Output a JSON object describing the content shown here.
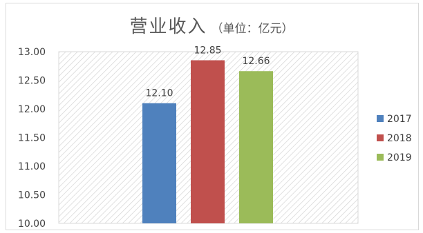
{
  "chart_data": {
    "type": "bar",
    "title": "营业收入",
    "unit": "（单位：亿元）",
    "categories": [
      "2017",
      "2018",
      "2019"
    ],
    "values": [
      12.1,
      12.85,
      12.66
    ],
    "value_labels": [
      "12.10",
      "12.85",
      "12.66"
    ],
    "series_colors": [
      "#4f81bd",
      "#c0504d",
      "#9bbb59"
    ],
    "ylim": [
      10.0,
      13.0
    ],
    "y_ticks": [
      "10.00",
      "10.50",
      "11.00",
      "11.50",
      "12.00",
      "12.50",
      "13.00"
    ],
    "grid": false,
    "plot_background": "hatched",
    "legend": {
      "placement": "right",
      "entries": [
        "2017",
        "2018",
        "2019"
      ]
    }
  }
}
